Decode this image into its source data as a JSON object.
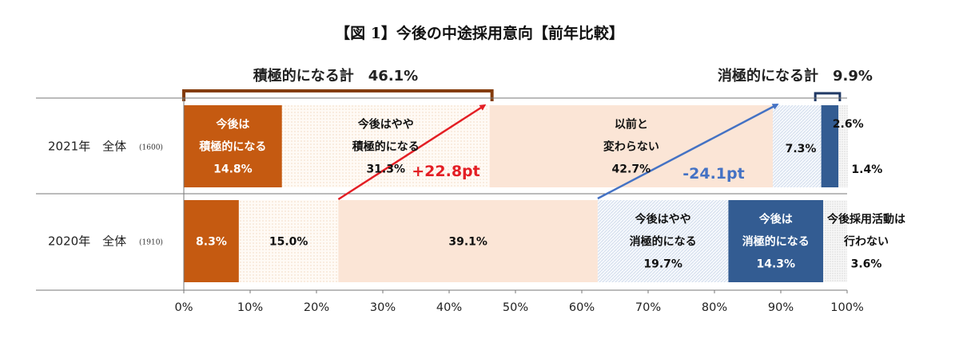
{
  "chart_data": {
    "type": "bar",
    "orientation": "horizontal",
    "stacked": true,
    "title": "【図 1】今後の中途採用意向【前年比較】",
    "xlim": [
      0,
      100
    ],
    "x_ticks": [
      "0%",
      "10%",
      "20%",
      "30%",
      "40%",
      "50%",
      "60%",
      "70%",
      "80%",
      "90%",
      "100%"
    ],
    "colors": {
      "active": "#c55a11",
      "somewhat_active": "#fffaf5",
      "unchanged": "#fbe5d6",
      "somewhat_passive": "#eef3f9",
      "passive": "#335c92",
      "no_activity": "#f4f4f4",
      "increase_arrow": "#e31e24",
      "decrease_arrow": "#4472c4",
      "active_bracket": "#843c0c",
      "passive_bracket": "#1f3864"
    },
    "categories": [
      {
        "label": "2021年　全体",
        "n": "(1600)"
      },
      {
        "label": "2020年　全体",
        "n": "(1910)"
      }
    ],
    "series": [
      {
        "key": "active",
        "values": [
          14.8,
          8.3
        ],
        "labels": [
          [
            "今後は",
            "積極的になる",
            "14.8%"
          ],
          [
            "8.3%"
          ]
        ]
      },
      {
        "key": "somewhat_active",
        "values": [
          31.3,
          15.0
        ],
        "labels": [
          [
            "今後はやや",
            "積極的になる",
            "31.3%"
          ],
          [
            "15.0%"
          ]
        ]
      },
      {
        "key": "unchanged",
        "values": [
          42.7,
          39.1
        ],
        "labels": [
          [
            "以前と",
            "変わらない",
            "42.7%"
          ],
          [
            "39.1%"
          ]
        ]
      },
      {
        "key": "somewhat_passive",
        "values": [
          7.3,
          19.7
        ],
        "labels": [
          [
            "7.3%"
          ],
          [
            "今後はやや",
            "消極的になる",
            "19.7%"
          ]
        ]
      },
      {
        "key": "passive",
        "values": [
          2.6,
          14.3
        ],
        "labels": [
          [
            "2.6%"
          ],
          [
            "今後は",
            "消極的になる",
            "14.3%"
          ]
        ]
      },
      {
        "key": "no_activity",
        "values": [
          1.4,
          3.6
        ],
        "labels": [
          [
            "1.4%"
          ],
          [
            "今後採用活動は",
            "行わない",
            "3.6%"
          ]
        ]
      }
    ],
    "summaries": {
      "active_total": "積極的になる計　46.1%",
      "passive_total": "消極的になる計　9.9%"
    },
    "annotations": {
      "increase": "+22.8pt",
      "decrease": "-24.1pt"
    }
  }
}
